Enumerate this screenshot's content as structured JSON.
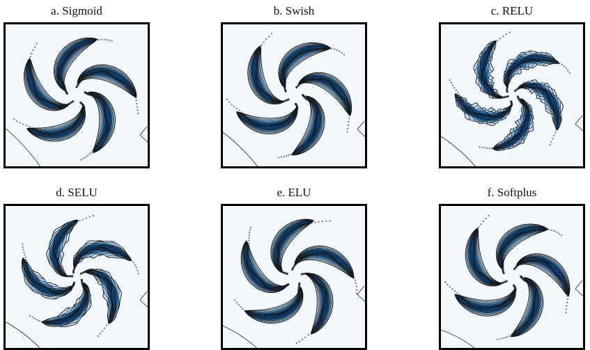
{
  "figure": {
    "panels": [
      {
        "id": "a",
        "title": "a. Sigmoid",
        "variant": "smooth"
      },
      {
        "id": "b",
        "title": "b. Swish",
        "variant": "smooth"
      },
      {
        "id": "c",
        "title": "c. RELU",
        "variant": "jagged"
      },
      {
        "id": "d",
        "title": "d. SELU",
        "variant": "wobbly"
      },
      {
        "id": "e",
        "title": "e. ELU",
        "variant": "smooth"
      },
      {
        "id": "f",
        "title": "f. Softplus",
        "variant": "smooth"
      }
    ],
    "colors": {
      "background": "#f3f8fd",
      "levels": [
        "#cfe1f2",
        "#a6c9e6",
        "#6ea6d2",
        "#3f7fb8",
        "#1d5c99",
        "#0b3d70"
      ],
      "contour_line": "#111111",
      "points": "#1a1a1a",
      "frame": "#000000"
    },
    "arms": 5
  }
}
